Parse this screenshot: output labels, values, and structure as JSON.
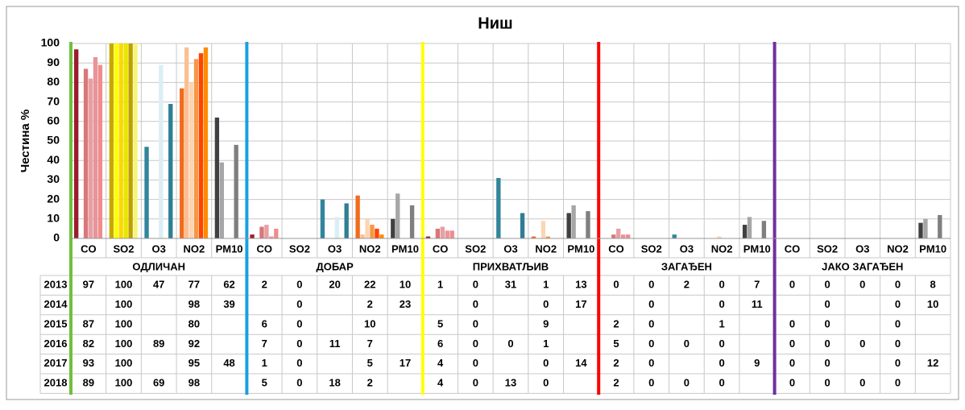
{
  "chart_data": {
    "type": "bar",
    "title": "Ниш",
    "y_label": "Честина %",
    "groups": [
      "ОДЛИЧАН",
      "ДОБАР",
      "ПРИХВАТЉИВ",
      "ЗАГАЂЕН",
      "ЈАКО ЗАГАЂЕН"
    ],
    "group_colors": [
      "#70c03c",
      "#1aa0e0",
      "#ffff00",
      "#ff0000",
      "#7030a0"
    ],
    "pollutants": [
      "CO",
      "SO2",
      "O3",
      "NO2",
      "PM10"
    ],
    "pollutant_colors": [
      [
        "#9b1c2e",
        "#c0504d",
        "#d9777a",
        "#e6a0a4",
        "#e8949a",
        "#f08c8c"
      ],
      [
        "#c8a800",
        "#ffff00",
        "#ffd700",
        "#e6e600",
        "#bfa000",
        "#f5f57a"
      ],
      [
        "#31859c",
        "#4bacc6",
        "#92cddc",
        "#dbeef4",
        "#31859c",
        "#2e7f94"
      ],
      [
        "#f26b1d",
        "#fac090",
        "#fcd5b4",
        "#f79646",
        "#ff4500",
        "#ff8c00"
      ],
      [
        "#404040",
        "#a6a6a6",
        "#bfbfbf",
        "#d9d9d9",
        "#7f7f7f",
        "#595959"
      ]
    ],
    "series": [
      {
        "name": "2013",
        "values": [
          97,
          100,
          47,
          77,
          62,
          2,
          0,
          20,
          22,
          10,
          1,
          0,
          31,
          1,
          13,
          0,
          0,
          2,
          0,
          7,
          0,
          0,
          0,
          0,
          8
        ]
      },
      {
        "name": "2014",
        "values": [
          null,
          100,
          null,
          98,
          39,
          null,
          0,
          null,
          2,
          23,
          null,
          0,
          null,
          0,
          17,
          null,
          0,
          null,
          0,
          11,
          null,
          0,
          null,
          0,
          10
        ]
      },
      {
        "name": "2015",
        "values": [
          87,
          100,
          null,
          80,
          null,
          6,
          0,
          null,
          10,
          null,
          5,
          0,
          null,
          9,
          null,
          2,
          0,
          null,
          1,
          null,
          0,
          0,
          null,
          0,
          null
        ]
      },
      {
        "name": "2016",
        "values": [
          82,
          100,
          89,
          92,
          null,
          7,
          0,
          11,
          7,
          null,
          6,
          0,
          0,
          1,
          null,
          5,
          0,
          0,
          0,
          null,
          0,
          0,
          0,
          0,
          null
        ]
      },
      {
        "name": "2017",
        "values": [
          93,
          100,
          null,
          95,
          48,
          1,
          0,
          null,
          5,
          17,
          4,
          0,
          null,
          0,
          14,
          2,
          0,
          null,
          0,
          9,
          0,
          0,
          null,
          0,
          12
        ]
      },
      {
        "name": "2018",
        "values": [
          89,
          100,
          69,
          98,
          null,
          5,
          0,
          18,
          2,
          null,
          4,
          0,
          13,
          0,
          null,
          2,
          0,
          0,
          0,
          null,
          0,
          0,
          0,
          0,
          null
        ]
      }
    ],
    "ylim": [
      0,
      100
    ],
    "yticks": [
      0,
      10,
      20,
      30,
      40,
      50,
      60,
      70,
      80,
      90,
      100
    ],
    "grid": true
  }
}
